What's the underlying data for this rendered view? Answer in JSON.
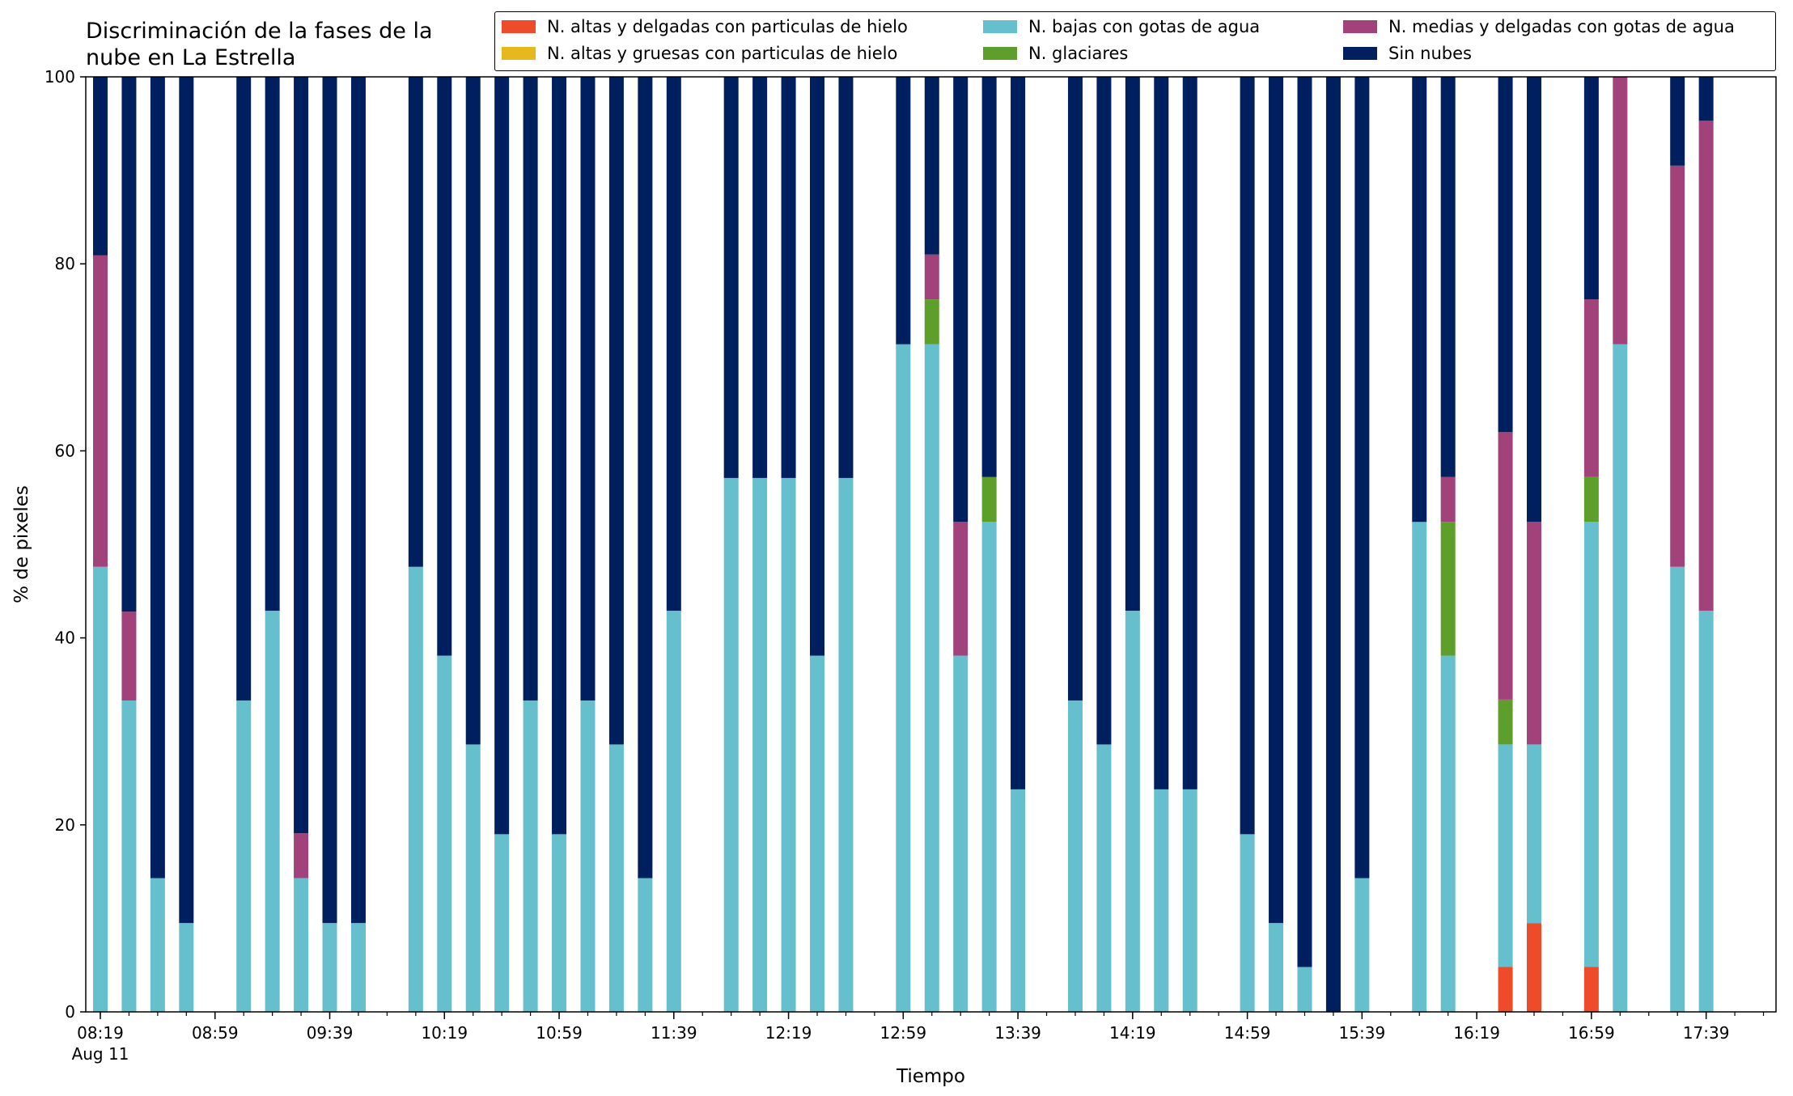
{
  "chart_data": {
    "type": "bar",
    "stacked": true,
    "title": "Discriminación de la fases de la\nnube en La Estrella",
    "xlabel": "Tiempo",
    "ylabel": "% de pixeles",
    "ylim": [
      0,
      100
    ],
    "yticks": [
      0,
      20,
      40,
      60,
      80,
      100
    ],
    "grid": false,
    "legend_position": "top",
    "x_start": "08:19",
    "x_interval_minutes": 10,
    "x_count": 59,
    "x_date_label": "Aug 11",
    "xtick_labels": [
      "08:19",
      "08:59",
      "09:39",
      "10:19",
      "10:59",
      "11:39",
      "12:19",
      "12:59",
      "13:39",
      "14:19",
      "14:59",
      "15:39",
      "16:19",
      "16:59",
      "17:39"
    ],
    "bars": [
      {
        "t": "08:19",
        "v": [
          0,
          0,
          47.6,
          0,
          33.3,
          19.1
        ]
      },
      {
        "t": "08:29",
        "v": [
          0,
          0,
          33.3,
          0,
          9.5,
          57.2
        ]
      },
      {
        "t": "08:39",
        "v": [
          0,
          0,
          14.3,
          0,
          0,
          85.7
        ]
      },
      {
        "t": "08:49",
        "v": [
          0,
          0,
          9.5,
          0,
          0,
          90.5
        ]
      },
      {
        "t": "09:09",
        "v": [
          0,
          0,
          33.3,
          0,
          0,
          66.7
        ]
      },
      {
        "t": "09:19",
        "v": [
          0,
          0,
          42.9,
          0,
          0,
          57.1
        ]
      },
      {
        "t": "09:29",
        "v": [
          0,
          0,
          14.3,
          0,
          4.8,
          80.9
        ]
      },
      {
        "t": "09:39",
        "v": [
          0,
          0,
          9.5,
          0,
          0,
          90.5
        ]
      },
      {
        "t": "09:49",
        "v": [
          0,
          0,
          9.5,
          0,
          0,
          90.5
        ]
      },
      {
        "t": "10:09",
        "v": [
          0,
          0,
          47.6,
          0,
          0,
          52.4
        ]
      },
      {
        "t": "10:19",
        "v": [
          0,
          0,
          38.1,
          0,
          0,
          61.9
        ]
      },
      {
        "t": "10:29",
        "v": [
          0,
          0,
          28.6,
          0,
          0,
          71.4
        ]
      },
      {
        "t": "10:39",
        "v": [
          0,
          0,
          19.0,
          0,
          0,
          81.0
        ]
      },
      {
        "t": "10:49",
        "v": [
          0,
          0,
          33.3,
          0,
          0,
          66.7
        ]
      },
      {
        "t": "10:59",
        "v": [
          0,
          0,
          19.0,
          0,
          0,
          81.0
        ]
      },
      {
        "t": "11:09",
        "v": [
          0,
          0,
          33.3,
          0,
          0,
          66.7
        ]
      },
      {
        "t": "11:19",
        "v": [
          0,
          0,
          28.6,
          0,
          0,
          71.4
        ]
      },
      {
        "t": "11:29",
        "v": [
          0,
          0,
          14.3,
          0,
          0,
          85.7
        ]
      },
      {
        "t": "11:39",
        "v": [
          0,
          0,
          42.9,
          0,
          0,
          57.1
        ]
      },
      {
        "t": "11:59",
        "v": [
          0,
          0,
          57.1,
          0,
          0,
          42.9
        ]
      },
      {
        "t": "12:09",
        "v": [
          0,
          0,
          57.1,
          0,
          0,
          42.9
        ]
      },
      {
        "t": "12:19",
        "v": [
          0,
          0,
          57.1,
          0,
          0,
          42.9
        ]
      },
      {
        "t": "12:29",
        "v": [
          0,
          0,
          38.1,
          0,
          0,
          61.9
        ]
      },
      {
        "t": "12:39",
        "v": [
          0,
          0,
          57.1,
          0,
          0,
          42.9
        ]
      },
      {
        "t": "12:59",
        "v": [
          0,
          0,
          71.4,
          0,
          0,
          28.6
        ]
      },
      {
        "t": "13:09",
        "v": [
          0,
          0,
          71.4,
          4.8,
          4.8,
          19.0
        ]
      },
      {
        "t": "13:19",
        "v": [
          0,
          0,
          38.1,
          0,
          14.3,
          47.6
        ]
      },
      {
        "t": "13:29",
        "v": [
          0,
          0,
          52.4,
          4.8,
          0,
          42.8
        ]
      },
      {
        "t": "13:39",
        "v": [
          0,
          0,
          23.8,
          0,
          0,
          76.2
        ]
      },
      {
        "t": "13:59",
        "v": [
          0,
          0,
          33.3,
          0,
          0,
          66.7
        ]
      },
      {
        "t": "14:09",
        "v": [
          0,
          0,
          28.6,
          0,
          0,
          71.4
        ]
      },
      {
        "t": "14:19",
        "v": [
          0,
          0,
          42.9,
          0,
          0,
          57.1
        ]
      },
      {
        "t": "14:29",
        "v": [
          0,
          0,
          23.8,
          0,
          0,
          76.2
        ]
      },
      {
        "t": "14:39",
        "v": [
          0,
          0,
          23.8,
          0,
          0,
          76.2
        ]
      },
      {
        "t": "14:59",
        "v": [
          0,
          0,
          19.0,
          0,
          0,
          81.0
        ]
      },
      {
        "t": "15:09",
        "v": [
          0,
          0,
          9.5,
          0,
          0,
          90.5
        ]
      },
      {
        "t": "15:19",
        "v": [
          0,
          0,
          4.8,
          0,
          0,
          95.2
        ]
      },
      {
        "t": "15:29",
        "v": [
          0,
          0,
          0,
          0,
          0,
          100
        ]
      },
      {
        "t": "15:39",
        "v": [
          0,
          0,
          14.3,
          0,
          0,
          85.7
        ]
      },
      {
        "t": "15:59",
        "v": [
          0,
          0,
          52.4,
          0,
          0,
          47.6
        ]
      },
      {
        "t": "16:09",
        "v": [
          0,
          0,
          38.1,
          14.3,
          4.8,
          42.8
        ]
      },
      {
        "t": "16:29",
        "v": [
          4.8,
          0,
          23.8,
          4.8,
          28.6,
          38.0
        ]
      },
      {
        "t": "16:39",
        "v": [
          9.5,
          0,
          19.1,
          0,
          23.8,
          47.6
        ]
      },
      {
        "t": "16:59",
        "v": [
          4.8,
          0,
          47.6,
          4.8,
          19.0,
          23.8
        ]
      },
      {
        "t": "17:09",
        "v": [
          0,
          0,
          71.4,
          0,
          28.6,
          0
        ]
      },
      {
        "t": "17:29",
        "v": [
          0,
          0,
          47.6,
          0,
          42.9,
          9.5
        ]
      },
      {
        "t": "17:39",
        "v": [
          0,
          0,
          42.9,
          0,
          52.4,
          4.7
        ]
      }
    ],
    "series": [
      {
        "name": "N. altas y delgadas con particulas de hielo",
        "color": "#ee4b2b"
      },
      {
        "name": "N. altas y gruesas con particulas de hielo",
        "color": "#e6b81c"
      },
      {
        "name": "N. bajas con gotas de agua",
        "color": "#66bfcc"
      },
      {
        "name": "N. glaciares",
        "color": "#5e9f2c"
      },
      {
        "name": "N. medias y delgadas con gotas de agua",
        "color": "#a1437a"
      },
      {
        "name": "Sin nubes",
        "color": "#001f5f"
      }
    ]
  }
}
